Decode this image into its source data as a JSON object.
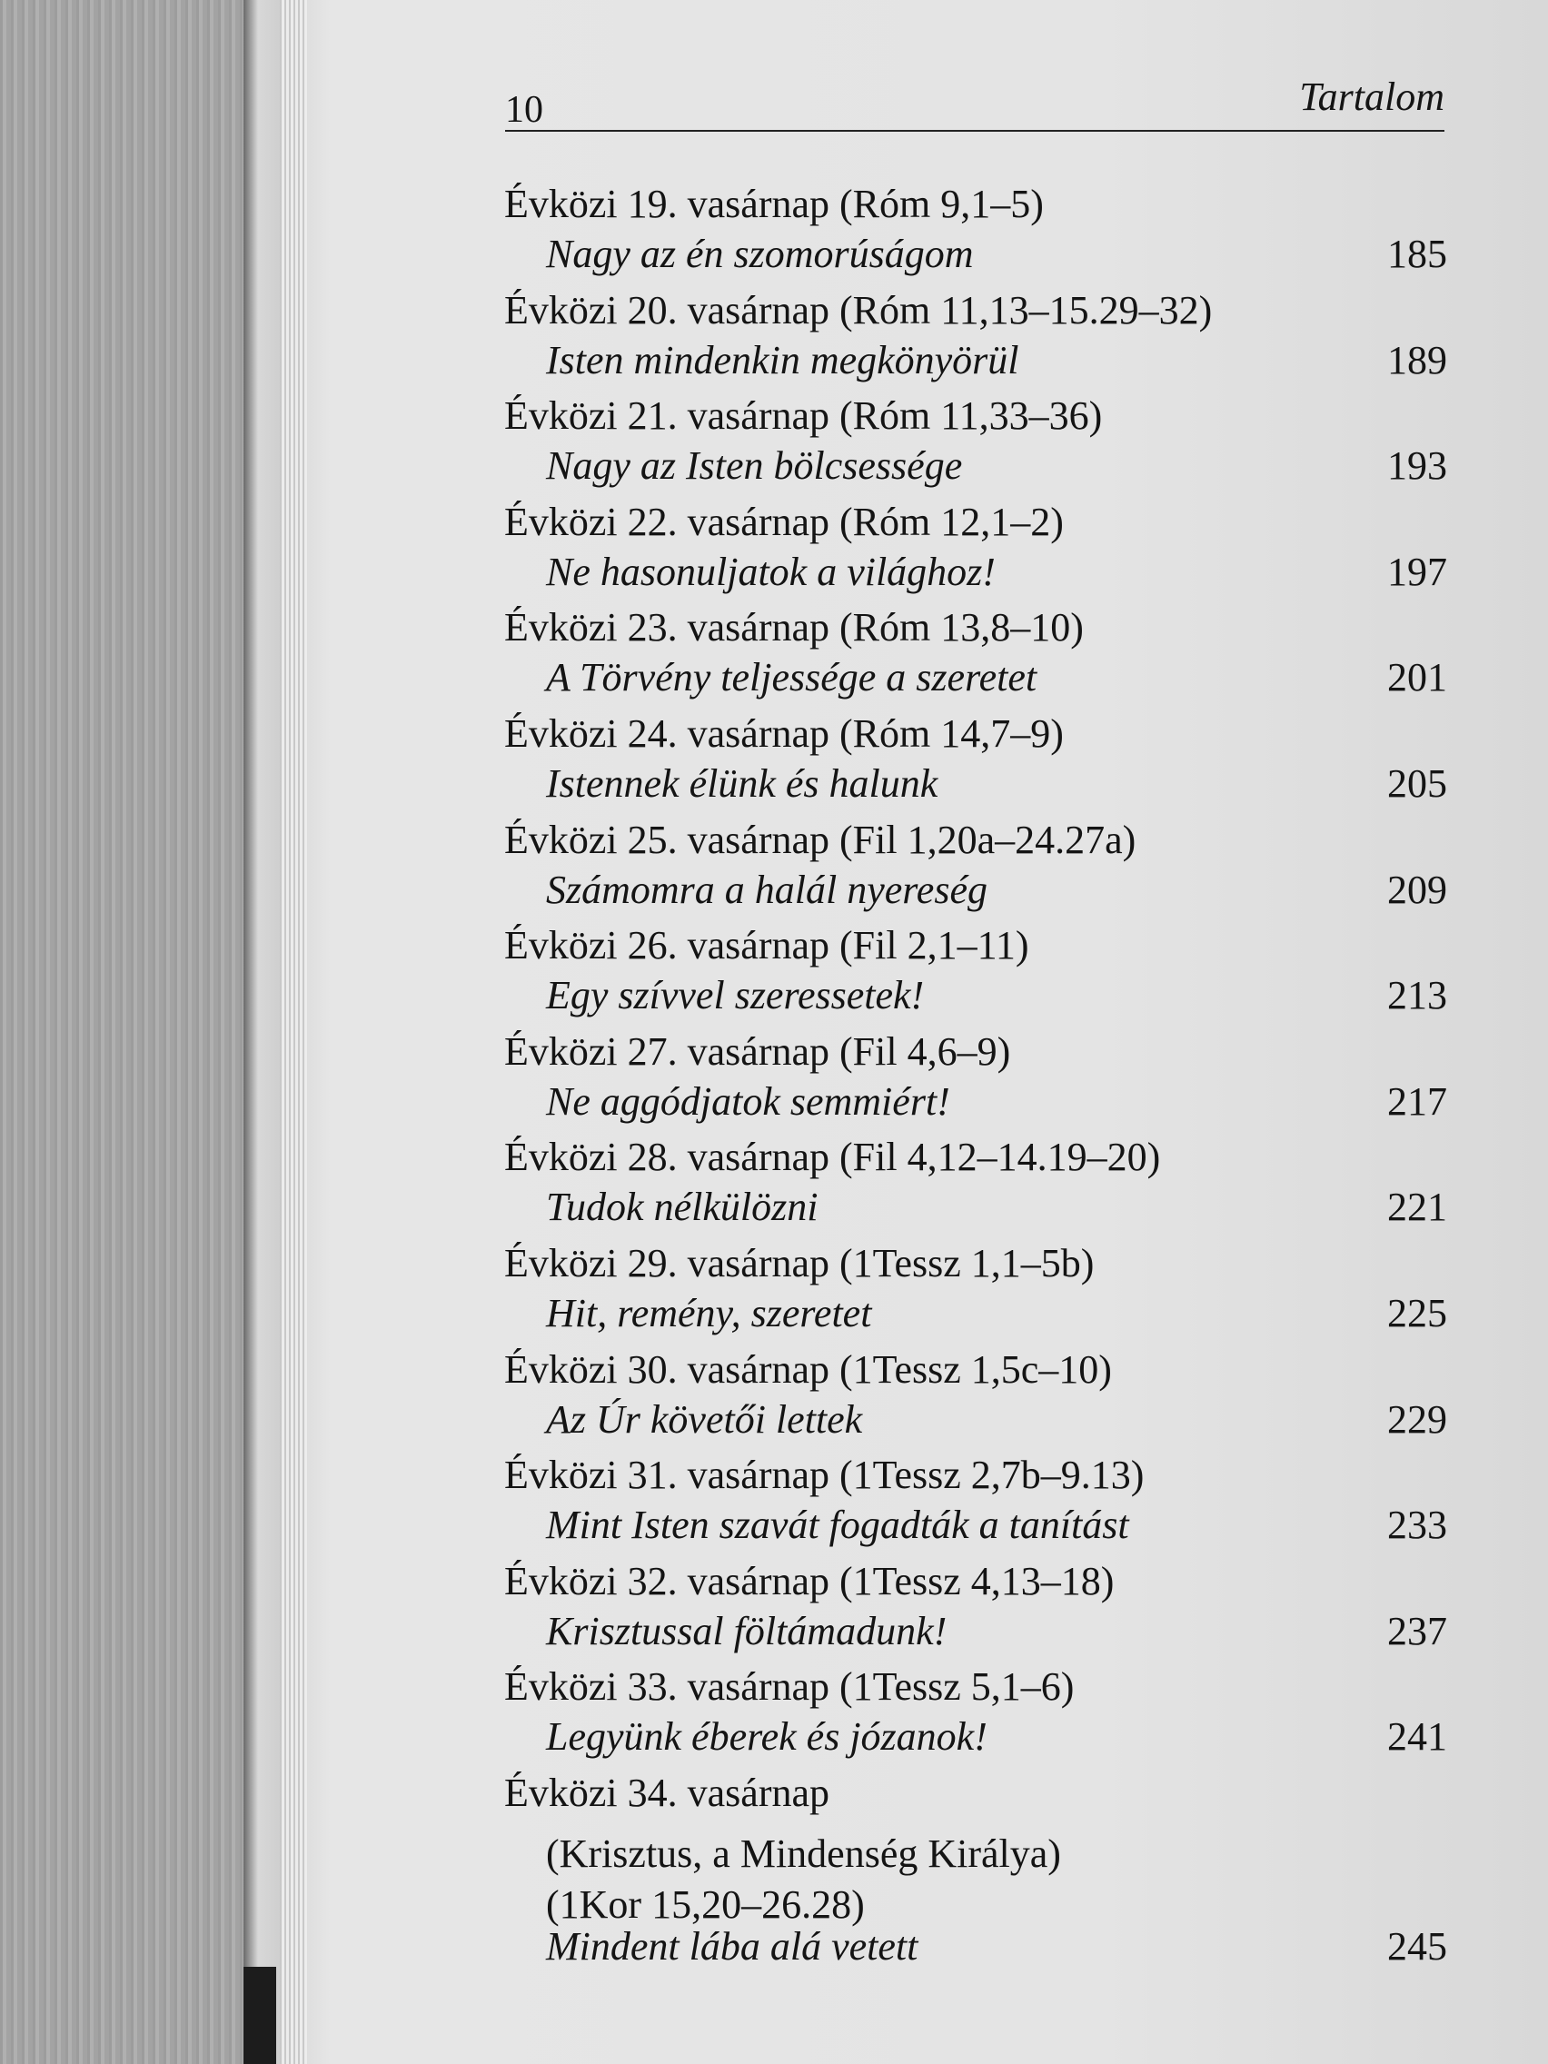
{
  "header": {
    "page_number": "10",
    "title": "Tartalom"
  },
  "entries": [
    {
      "heading": "Évközi 19. vasárnap (Róm 9,1–5)",
      "subtitle": "Nagy az én szomorúságom",
      "page": 185
    },
    {
      "heading": "Évközi 20. vasárnap (Róm 11,13–15.29–32)",
      "subtitle": "Isten mindenkin megkönyörül",
      "page": 189
    },
    {
      "heading": "Évközi 21. vasárnap (Róm 11,33–36)",
      "subtitle": "Nagy az Isten bölcsessége",
      "page": 193
    },
    {
      "heading": "Évközi 22. vasárnap (Róm 12,1–2)",
      "subtitle": "Ne hasonuljatok a világhoz!",
      "page": 197
    },
    {
      "heading": "Évközi 23. vasárnap (Róm 13,8–10)",
      "subtitle": "A Törvény teljessége a szeretet",
      "page": 201
    },
    {
      "heading": "Évközi 24. vasárnap (Róm 14,7–9)",
      "subtitle": "Istennek élünk és halunk",
      "page": 205
    },
    {
      "heading": "Évközi 25. vasárnap (Fil 1,20a–24.27a)",
      "subtitle": "Számomra a halál nyereség",
      "page": 209
    },
    {
      "heading": "Évközi 26. vasárnap (Fil 2,1–11)",
      "subtitle": "Egy szívvel szeressetek!",
      "page": 213
    },
    {
      "heading": "Évközi 27. vasárnap (Fil 4,6–9)",
      "subtitle": "Ne aggódjatok semmiért!",
      "page": 217
    },
    {
      "heading": "Évközi 28. vasárnap (Fil 4,12–14.19–20)",
      "subtitle": "Tudok nélkülözni",
      "page": 221
    },
    {
      "heading": "Évközi 29. vasárnap (1Tessz 1,1–5b)",
      "subtitle": "Hit, remény, szeretet",
      "page": 225
    },
    {
      "heading": "Évközi 30. vasárnap (1Tessz 1,5c–10)",
      "subtitle": "Az Úr követői lettek",
      "page": 229
    },
    {
      "heading": "Évközi 31. vasárnap (1Tessz 2,7b–9.13)",
      "subtitle": "Mint Isten szavát fogadták a tanítást",
      "page": 233
    },
    {
      "heading": "Évközi 32. vasárnap (1Tessz 4,13–18)",
      "subtitle": "Krisztussal föltámadunk!",
      "page": 237
    },
    {
      "heading": "Évközi 33. vasárnap (1Tessz 5,1–6)",
      "subtitle": "Legyünk éberek és józanok!",
      "page": 241
    },
    {
      "heading": "Évközi 34. vasárnap",
      "notes": [
        "(Krisztus, a Mindenség Királya)",
        "(1Kor 15,20–26.28)"
      ],
      "subtitle": "Mindent lába alá vetett",
      "page": 245
    }
  ]
}
